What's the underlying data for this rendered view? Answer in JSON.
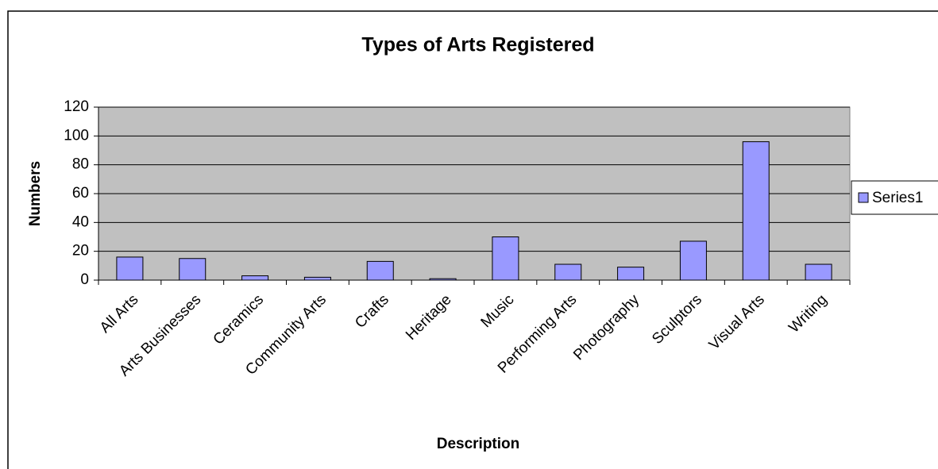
{
  "chart_data": {
    "type": "bar",
    "title": "Types of Arts Registered",
    "x_label": "Description",
    "y_label": "Numbers",
    "categories": [
      "All Arts",
      "Arts Businesses",
      "Ceramics",
      "Community Arts",
      "Crafts",
      "Heritage",
      "Music",
      "Performing Arts",
      "Photography",
      "Sculptors",
      "Visual Arts",
      "Writing"
    ],
    "series": [
      {
        "name": "Series1",
        "color": "#9999ff",
        "values": [
          16,
          15,
          3,
          2,
          13,
          1,
          30,
          11,
          9,
          27,
          96,
          11
        ]
      }
    ],
    "ylim": [
      0,
      120
    ],
    "yticks": [
      0,
      20,
      40,
      60,
      80,
      100,
      120
    ],
    "grid": true,
    "legend": "right"
  }
}
